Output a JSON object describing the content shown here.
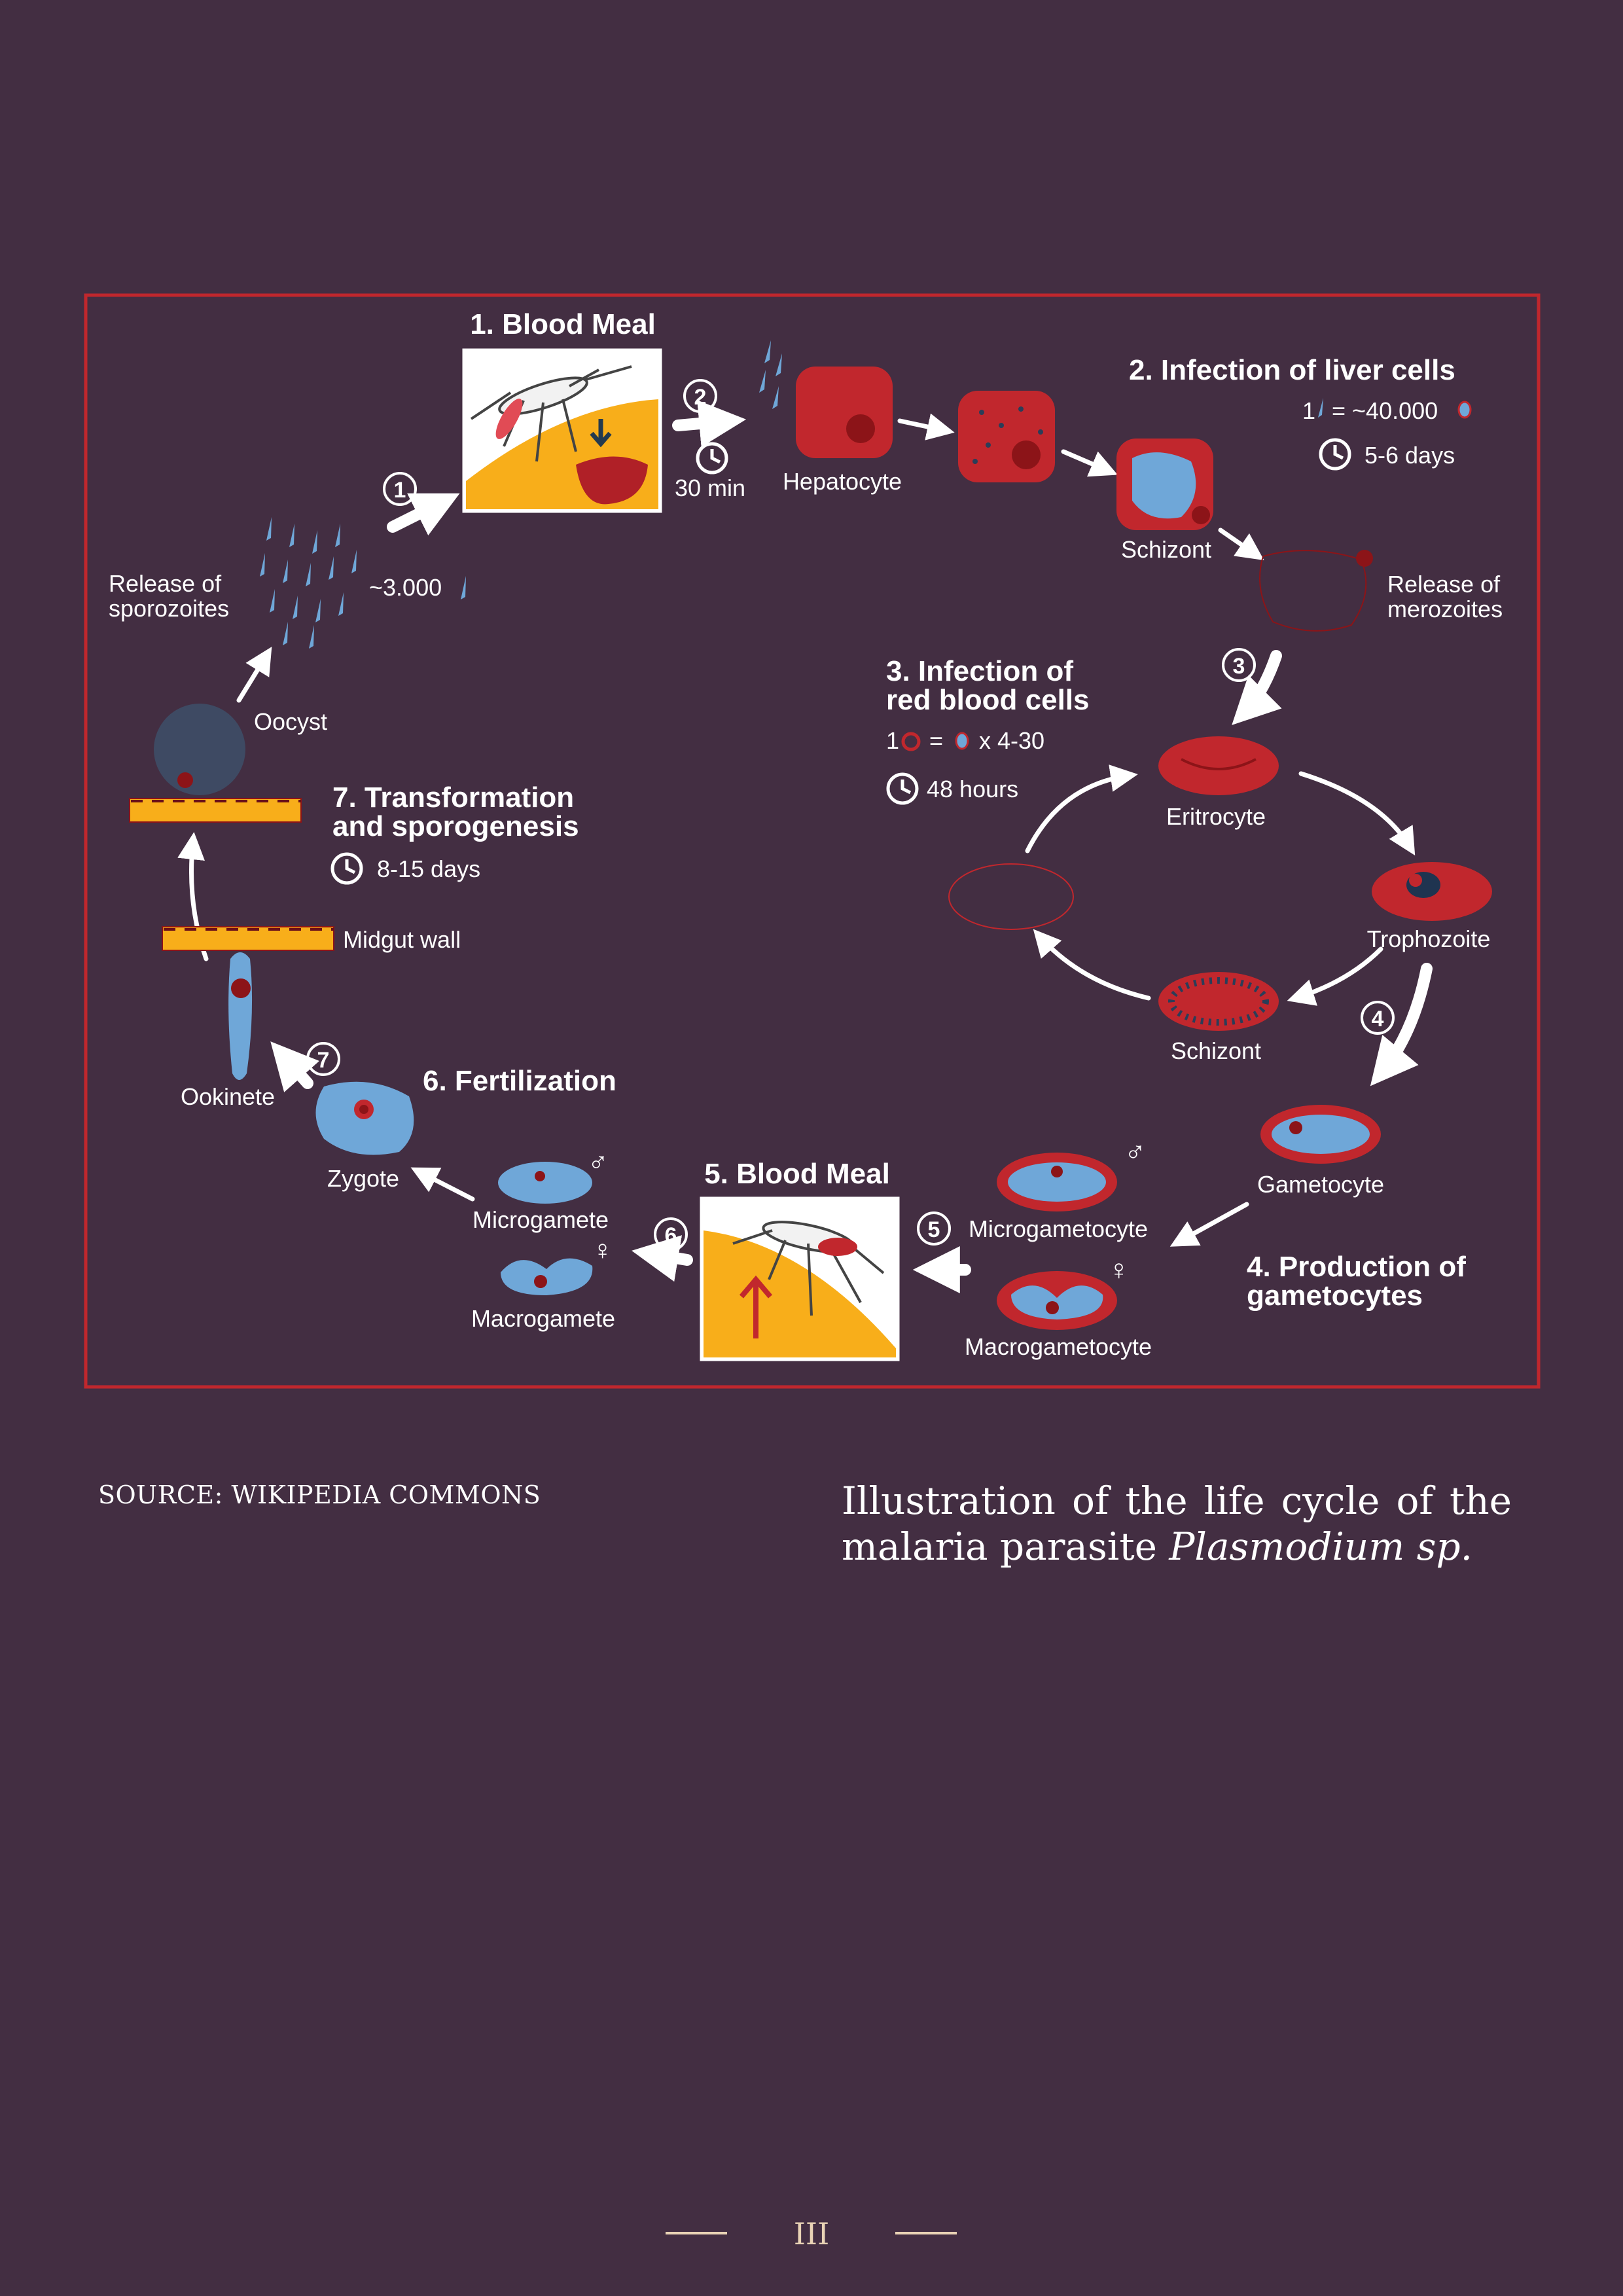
{
  "diagram": {
    "stages": {
      "s1_title": "1. Blood Meal",
      "s2_title": "2. Infection of liver cells",
      "s3_title_line1": "3. Infection of",
      "s3_title_line2": "red blood cells",
      "s4_title_line1": "4. Production of",
      "s4_title_line2": "gametocytes",
      "s5_title": "5. Blood Meal",
      "s6_title": "6. Fertilization",
      "s7_title_line1": "7. Transformation",
      "s7_title_line2": "and sporogenesis"
    },
    "step_numbers": [
      "1",
      "2",
      "3",
      "4",
      "5",
      "6",
      "7"
    ],
    "labels": {
      "hepatocyte": "Hepatocyte",
      "schizont_liver": "Schizont",
      "release_merozoites_line1": "Release of",
      "release_merozoites_line2": "merozoites",
      "eritrocyte": "Eritrocyte",
      "trophozoite": "Trophozoite",
      "schizont_blood": "Schizont",
      "gametocyte": "Gametocyte",
      "microgametocyte": "Microgametocyte",
      "macrogametocyte": "Macrogametocyte",
      "microgamete": "Microgamete",
      "macrogamete": "Macrogamete",
      "zygote": "Zygote",
      "ookinete": "Ookinete",
      "midgut_wall": "Midgut wall",
      "oocyst": "Oocyst",
      "release_sporozoites_line1": "Release of",
      "release_sporozoites_line2": "sporozoites"
    },
    "quantities": {
      "sporozoites_count": "~3.000",
      "liver_ratio_left": "1",
      "liver_ratio_right": "= ~40.000",
      "rbc_ratio_left": "1",
      "rbc_ratio_mid": "=",
      "rbc_ratio_right": "x 4-30"
    },
    "durations": {
      "blood_meal": "30 min",
      "liver": "5-6 days",
      "rbc": "48 hours",
      "sporogenesis": "8-15 days"
    },
    "sex_symbols": {
      "male": "♂",
      "female": "♀"
    },
    "colors": {
      "background": "#432e42",
      "frame": "#c0272d",
      "cell_red": "#c1272d",
      "cell_dark": "#8c1418",
      "parasite_blue": "#6fa7d8",
      "skin_yellow": "#f8ae1a",
      "text": "#ffffff"
    }
  },
  "caption": {
    "source": "SOURCE: WIKIPEDIA COMMONS",
    "text_prefix": "Illustration of the life cycle of the malaria parasite ",
    "text_italic": "Plasmodium sp."
  },
  "footer": {
    "page_number": "III"
  }
}
